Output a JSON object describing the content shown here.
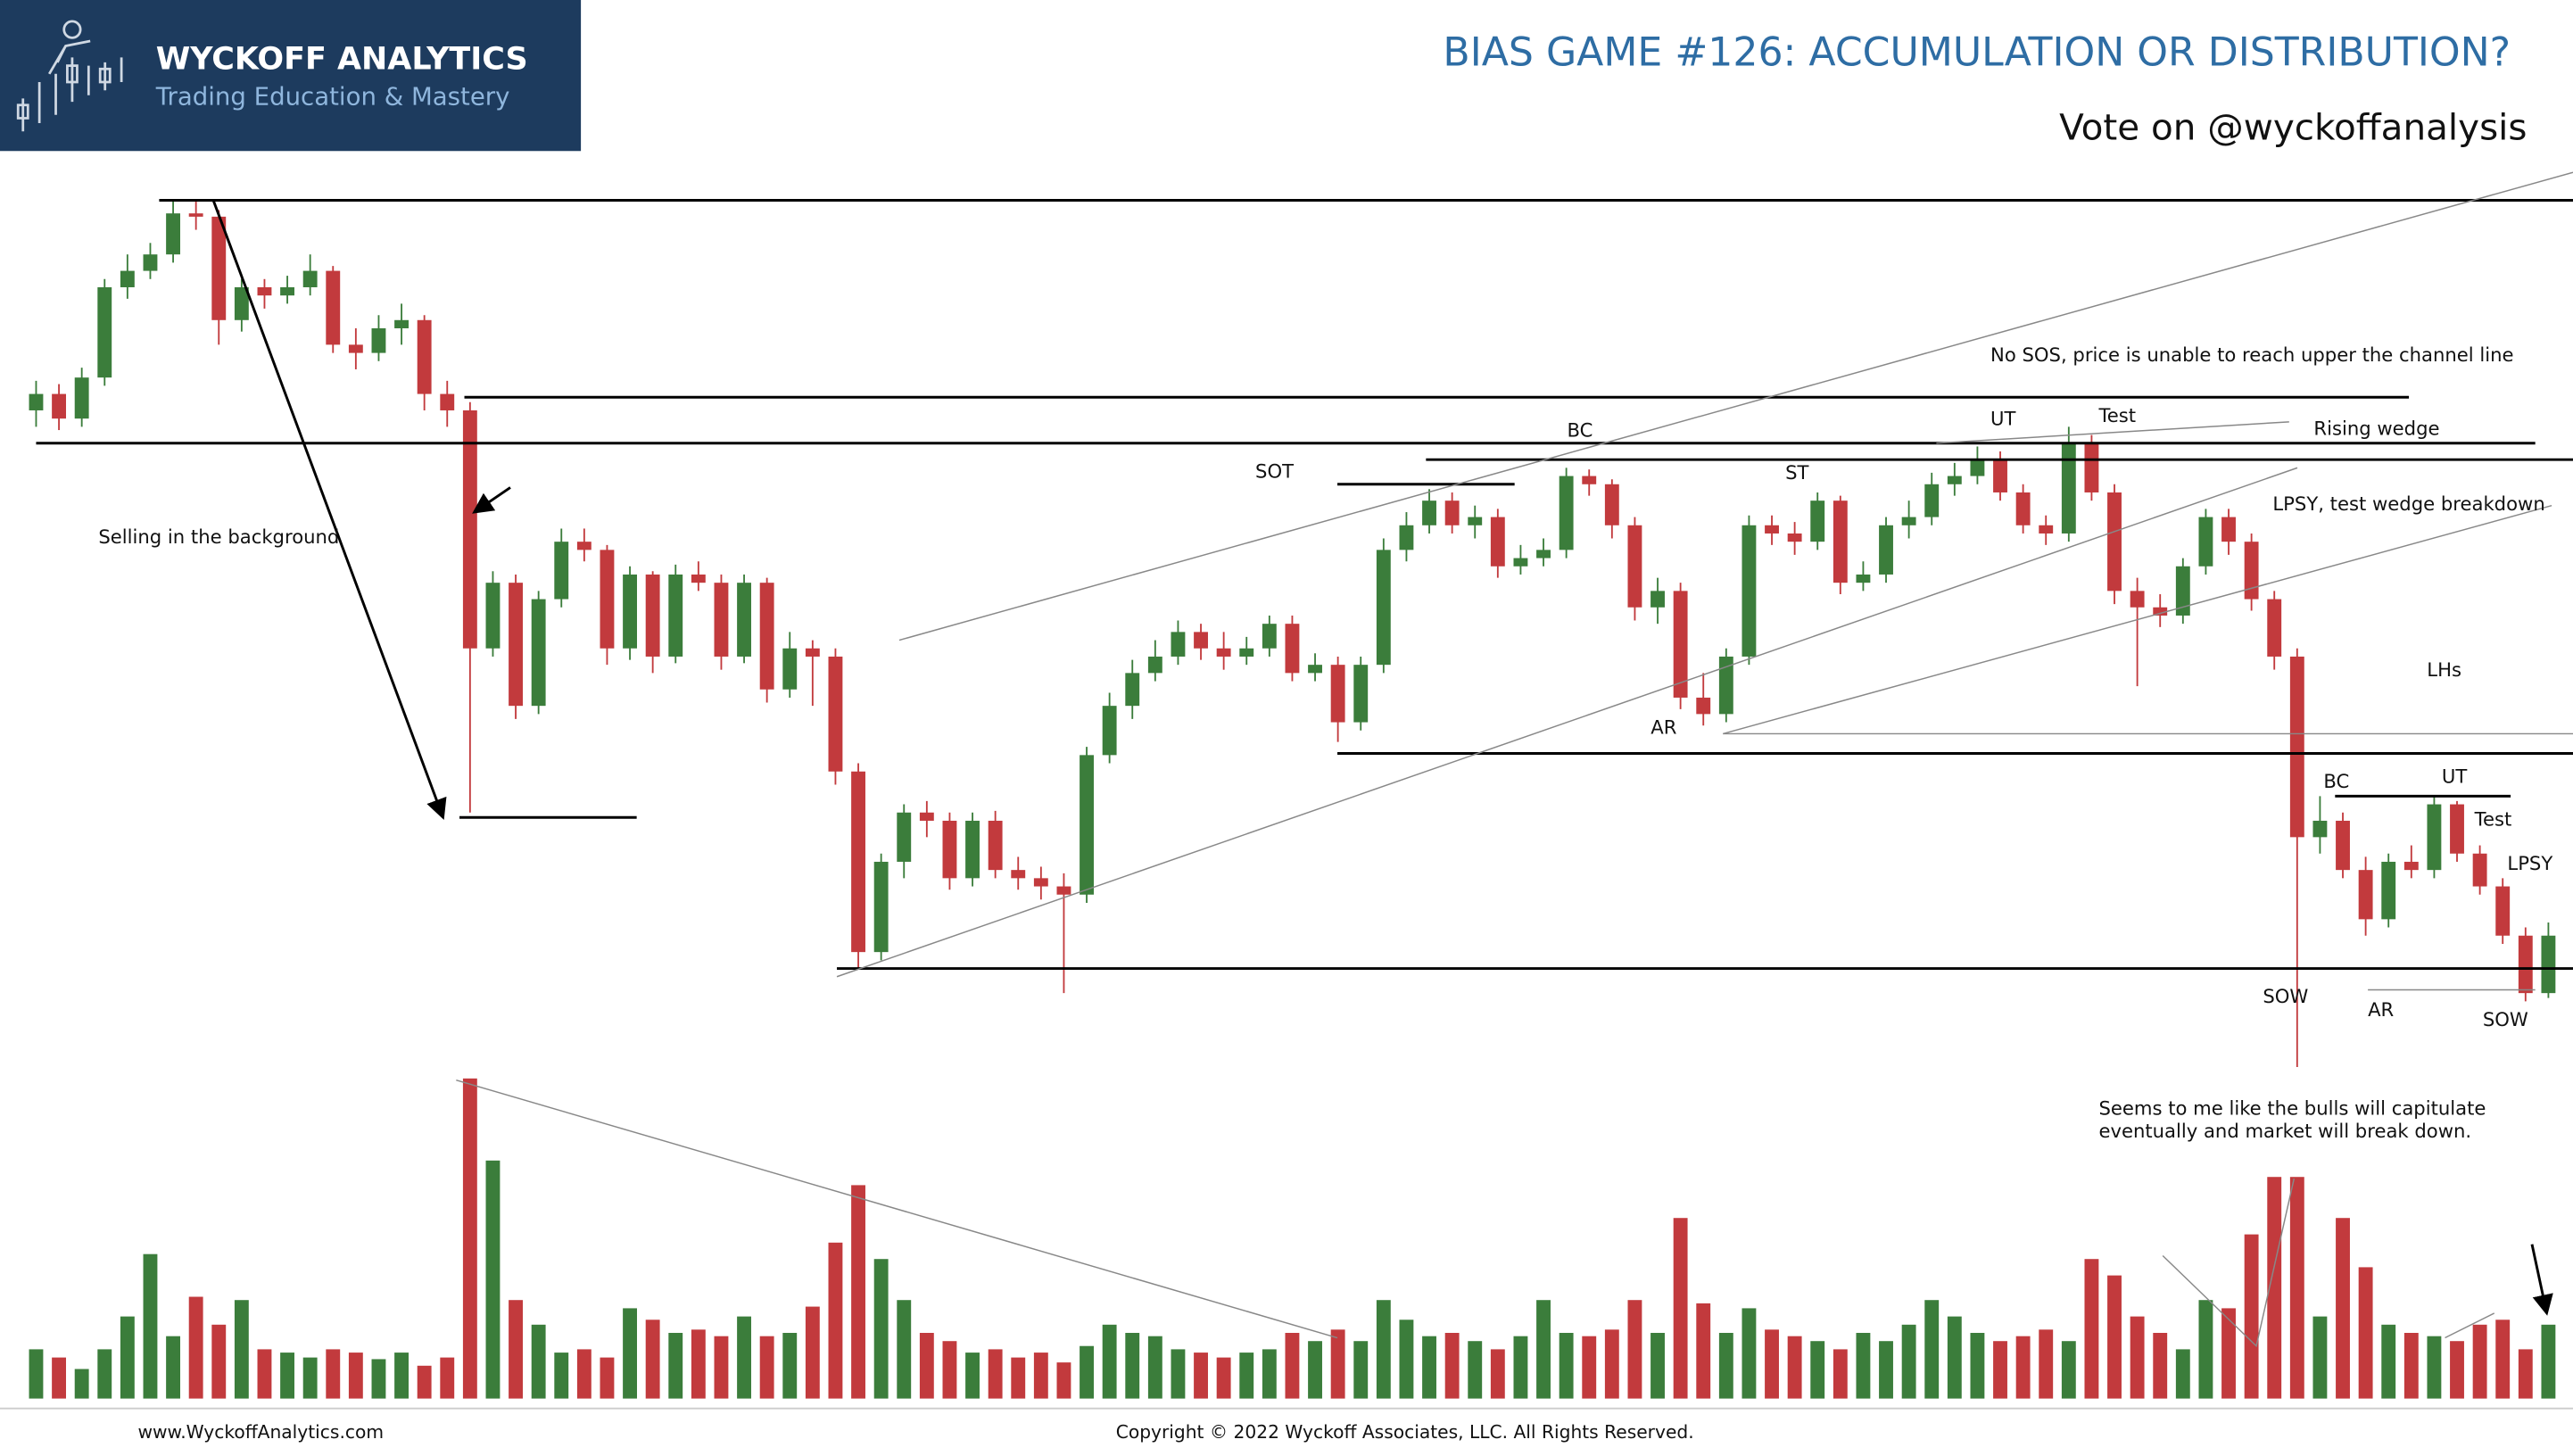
{
  "header": {
    "logo_title": "WYCKOFF ANALYTICS",
    "logo_subtitle": "Trading Education & Mastery"
  },
  "footer": {
    "website": "www.WyckoffAnalytics.com",
    "copyright": "Copyright © 2022 Wyckoff Associates, LLC. All Rights Reserved."
  },
  "chart_data": {
    "type": "candlestick",
    "title": "BIAS GAME #126: ACCUMULATION OR DISTRIBUTION?",
    "subtitle": "Vote on @wyckoffanalysis",
    "up_color": "#3b7d3b",
    "down_color": "#c23a3d",
    "ylim": [
      0,
      600
    ],
    "volume_lim": [
      0,
      200
    ],
    "annotations": [
      "Selling in the background",
      "SOT",
      "BC",
      "ST",
      "UT",
      "Test",
      "No SOS, price is unable to reach upper the channel line",
      "Rising wedge",
      "LPSY, test wedge breakdown",
      "AR",
      "LHs",
      "BC",
      "UT",
      "Test",
      "LPSY",
      "SOW",
      "AR",
      "SOW",
      "Seems to me like the bulls will capitulate",
      "eventually and market will break down."
    ],
    "candles": [
      [
        450,
        468,
        440,
        460
      ],
      [
        460,
        466,
        438,
        445
      ],
      [
        445,
        476,
        440,
        470
      ],
      [
        470,
        530,
        465,
        525
      ],
      [
        525,
        545,
        518,
        535
      ],
      [
        535,
        552,
        530,
        545
      ],
      [
        545,
        578,
        540,
        570
      ],
      [
        570,
        578,
        560,
        568
      ],
      [
        568,
        572,
        490,
        505
      ],
      [
        505,
        530,
        498,
        525
      ],
      [
        525,
        530,
        512,
        520
      ],
      [
        520,
        532,
        515,
        525
      ],
      [
        525,
        545,
        520,
        535
      ],
      [
        535,
        538,
        485,
        490
      ],
      [
        490,
        500,
        475,
        485
      ],
      [
        485,
        508,
        480,
        500
      ],
      [
        500,
        515,
        490,
        505
      ],
      [
        505,
        508,
        450,
        460
      ],
      [
        460,
        468,
        440,
        450
      ],
      [
        450,
        455,
        205,
        305
      ],
      [
        305,
        352,
        300,
        345
      ],
      [
        345,
        350,
        262,
        270
      ],
      [
        270,
        340,
        265,
        335
      ],
      [
        335,
        378,
        330,
        370
      ],
      [
        370,
        378,
        358,
        365
      ],
      [
        365,
        368,
        295,
        305
      ],
      [
        305,
        355,
        298,
        350
      ],
      [
        350,
        352,
        290,
        300
      ],
      [
        300,
        356,
        296,
        350
      ],
      [
        350,
        358,
        340,
        345
      ],
      [
        345,
        350,
        292,
        300
      ],
      [
        300,
        350,
        296,
        345
      ],
      [
        345,
        348,
        272,
        280
      ],
      [
        280,
        315,
        275,
        305
      ],
      [
        305,
        310,
        270,
        300
      ],
      [
        300,
        305,
        222,
        230
      ],
      [
        230,
        235,
        110,
        120
      ],
      [
        120,
        180,
        115,
        175
      ],
      [
        175,
        210,
        165,
        205
      ],
      [
        205,
        212,
        190,
        200
      ],
      [
        200,
        205,
        158,
        165
      ],
      [
        165,
        205,
        160,
        200
      ],
      [
        200,
        206,
        165,
        170
      ],
      [
        170,
        178,
        158,
        165
      ],
      [
        165,
        172,
        152,
        160
      ],
      [
        160,
        168,
        95,
        155
      ],
      [
        155,
        245,
        150,
        240
      ],
      [
        240,
        278,
        235,
        270
      ],
      [
        270,
        298,
        262,
        290
      ],
      [
        290,
        310,
        285,
        300
      ],
      [
        300,
        322,
        295,
        315
      ],
      [
        315,
        320,
        298,
        305
      ],
      [
        305,
        315,
        292,
        300
      ],
      [
        300,
        312,
        295,
        305
      ],
      [
        305,
        325,
        300,
        320
      ],
      [
        320,
        325,
        285,
        290
      ],
      [
        290,
        302,
        285,
        295
      ],
      [
        295,
        300,
        248,
        260
      ],
      [
        260,
        300,
        255,
        295
      ],
      [
        295,
        372,
        290,
        365
      ],
      [
        365,
        388,
        358,
        380
      ],
      [
        380,
        402,
        375,
        395
      ],
      [
        395,
        400,
        375,
        380
      ],
      [
        380,
        392,
        372,
        385
      ],
      [
        385,
        390,
        348,
        355
      ],
      [
        355,
        368,
        350,
        360
      ],
      [
        360,
        372,
        355,
        365
      ],
      [
        365,
        415,
        360,
        410
      ],
      [
        410,
        414,
        398,
        405
      ],
      [
        405,
        408,
        372,
        380
      ],
      [
        380,
        385,
        322,
        330
      ],
      [
        330,
        348,
        320,
        340
      ],
      [
        340,
        345,
        268,
        275
      ],
      [
        275,
        290,
        258,
        265
      ],
      [
        265,
        305,
        260,
        300
      ],
      [
        300,
        386,
        295,
        380
      ],
      [
        380,
        386,
        368,
        375
      ],
      [
        375,
        382,
        362,
        370
      ],
      [
        370,
        400,
        365,
        395
      ],
      [
        395,
        398,
        338,
        345
      ],
      [
        345,
        358,
        340,
        350
      ],
      [
        350,
        385,
        345,
        380
      ],
      [
        380,
        395,
        372,
        385
      ],
      [
        385,
        412,
        380,
        405
      ],
      [
        405,
        418,
        398,
        410
      ],
      [
        410,
        428,
        405,
        420
      ],
      [
        420,
        425,
        395,
        400
      ],
      [
        400,
        405,
        375,
        380
      ],
      [
        380,
        386,
        368,
        375
      ],
      [
        375,
        440,
        370,
        430
      ],
      [
        430,
        435,
        395,
        400
      ],
      [
        400,
        405,
        332,
        340
      ],
      [
        340,
        348,
        282,
        330
      ],
      [
        330,
        338,
        318,
        325
      ],
      [
        325,
        360,
        320,
        355
      ],
      [
        355,
        390,
        350,
        385
      ],
      [
        385,
        390,
        362,
        370
      ],
      [
        370,
        375,
        328,
        335
      ],
      [
        335,
        340,
        292,
        300
      ],
      [
        300,
        305,
        50,
        190
      ],
      [
        190,
        215,
        180,
        200
      ],
      [
        200,
        205,
        165,
        170
      ],
      [
        170,
        178,
        130,
        140
      ],
      [
        140,
        180,
        135,
        175
      ],
      [
        175,
        185,
        165,
        170
      ],
      [
        170,
        215,
        165,
        210
      ],
      [
        210,
        212,
        175,
        180
      ],
      [
        180,
        185,
        155,
        160
      ],
      [
        160,
        165,
        125,
        130
      ],
      [
        130,
        135,
        90,
        95
      ],
      [
        95,
        138,
        92,
        130
      ]
    ],
    "volume": [
      30,
      25,
      18,
      30,
      50,
      88,
      38,
      62,
      45,
      60,
      30,
      28,
      25,
      30,
      28,
      24,
      28,
      20,
      25,
      195,
      145,
      60,
      45,
      28,
      30,
      25,
      55,
      48,
      40,
      42,
      38,
      50,
      38,
      40,
      56,
      95,
      130,
      85,
      60,
      40,
      35,
      28,
      30,
      25,
      28,
      22,
      32,
      45,
      40,
      38,
      30,
      28,
      25,
      28,
      30,
      40,
      35,
      42,
      35,
      60,
      48,
      38,
      40,
      35,
      30,
      38,
      60,
      40,
      38,
      42,
      60,
      40,
      110,
      58,
      40,
      55,
      42,
      38,
      35,
      30,
      40,
      35,
      45,
      60,
      50,
      40,
      35,
      38,
      42,
      35,
      85,
      75,
      50,
      40,
      30,
      60,
      55,
      100,
      135,
      135,
      50,
      110,
      80,
      45,
      40,
      38,
      35,
      45,
      48,
      30,
      45
    ]
  }
}
